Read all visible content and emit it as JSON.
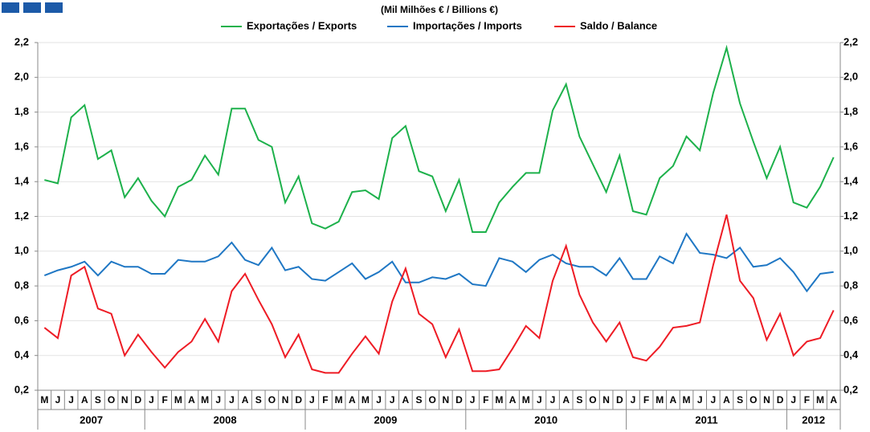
{
  "chart_data": {
    "type": "line",
    "title": "(Mil Milhões € / Billions €)",
    "categories": [
      "M",
      "J",
      "J",
      "A",
      "S",
      "O",
      "N",
      "D",
      "J",
      "F",
      "M",
      "A",
      "M",
      "J",
      "J",
      "A",
      "S",
      "O",
      "N",
      "D",
      "J",
      "F",
      "M",
      "A",
      "M",
      "J",
      "J",
      "A",
      "S",
      "O",
      "N",
      "D",
      "J",
      "F",
      "M",
      "A",
      "M",
      "J",
      "J",
      "A",
      "S",
      "O",
      "N",
      "D",
      "J",
      "F",
      "M",
      "A",
      "M",
      "J",
      "J",
      "A",
      "S",
      "O",
      "N",
      "D",
      "J",
      "F",
      "M",
      "A"
    ],
    "year_groups": [
      {
        "label": "2007",
        "count": 8
      },
      {
        "label": "2008",
        "count": 12
      },
      {
        "label": "2009",
        "count": 12
      },
      {
        "label": "2010",
        "count": 12
      },
      {
        "label": "2011",
        "count": 12
      },
      {
        "label": "2012",
        "count": 4
      }
    ],
    "series": [
      {
        "name": "Exportações / Exports",
        "color": "#1db14b",
        "values": [
          1.41,
          1.39,
          1.77,
          1.84,
          1.53,
          1.58,
          1.31,
          1.42,
          1.29,
          1.2,
          1.37,
          1.41,
          1.55,
          1.44,
          1.82,
          1.82,
          1.64,
          1.6,
          1.28,
          1.43,
          1.16,
          1.13,
          1.17,
          1.34,
          1.35,
          1.3,
          1.65,
          1.72,
          1.46,
          1.43,
          1.23,
          1.41,
          1.11,
          1.11,
          1.28,
          1.37,
          1.45,
          1.45,
          1.81,
          1.96,
          1.66,
          1.5,
          1.34,
          1.55,
          1.23,
          1.21,
          1.42,
          1.49,
          1.66,
          1.58,
          1.91,
          2.17,
          1.85,
          1.63,
          1.42,
          1.6,
          1.28,
          1.25,
          1.37,
          1.54
        ]
      },
      {
        "name": "Importações / Imports",
        "color": "#1f77c4",
        "values": [
          0.86,
          0.89,
          0.91,
          0.94,
          0.86,
          0.94,
          0.91,
          0.91,
          0.87,
          0.87,
          0.95,
          0.94,
          0.94,
          0.97,
          1.05,
          0.95,
          0.92,
          1.02,
          0.89,
          0.91,
          0.84,
          0.83,
          0.88,
          0.93,
          0.84,
          0.88,
          0.94,
          0.82,
          0.82,
          0.85,
          0.84,
          0.87,
          0.81,
          0.8,
          0.96,
          0.94,
          0.88,
          0.95,
          0.98,
          0.93,
          0.91,
          0.91,
          0.86,
          0.96,
          0.84,
          0.84,
          0.97,
          0.93,
          1.1,
          0.99,
          0.98,
          0.96,
          1.02,
          0.91,
          0.92,
          0.96,
          0.88,
          0.77,
          0.87,
          0.88
        ]
      },
      {
        "name": "Saldo / Balance",
        "color": "#ee1c25",
        "values": [
          0.56,
          0.5,
          0.86,
          0.91,
          0.67,
          0.64,
          0.4,
          0.52,
          0.42,
          0.33,
          0.42,
          0.48,
          0.61,
          0.48,
          0.77,
          0.87,
          0.72,
          0.58,
          0.39,
          0.52,
          0.32,
          0.3,
          0.3,
          0.41,
          0.51,
          0.41,
          0.71,
          0.9,
          0.64,
          0.58,
          0.39,
          0.55,
          0.31,
          0.31,
          0.32,
          0.44,
          0.57,
          0.5,
          0.83,
          1.03,
          0.75,
          0.59,
          0.48,
          0.59,
          0.39,
          0.37,
          0.45,
          0.56,
          0.57,
          0.59,
          0.92,
          1.21,
          0.83,
          0.73,
          0.49,
          0.64,
          0.4,
          0.48,
          0.5,
          0.66
        ]
      }
    ],
    "ylim": [
      0.2,
      2.2
    ],
    "yticks": [
      {
        "value": 0.2,
        "label": "0,2"
      },
      {
        "value": 0.4,
        "label": "0,4"
      },
      {
        "value": 0.6,
        "label": "0,6"
      },
      {
        "value": 0.8,
        "label": "0,8"
      },
      {
        "value": 1.0,
        "label": "1,0"
      },
      {
        "value": 1.2,
        "label": "1,2"
      },
      {
        "value": 1.4,
        "label": "1,4"
      },
      {
        "value": 1.6,
        "label": "1,6"
      },
      {
        "value": 1.8,
        "label": "1,8"
      },
      {
        "value": 2.0,
        "label": "2,0"
      },
      {
        "value": 2.2,
        "label": "2,2"
      }
    ],
    "grid": true
  }
}
